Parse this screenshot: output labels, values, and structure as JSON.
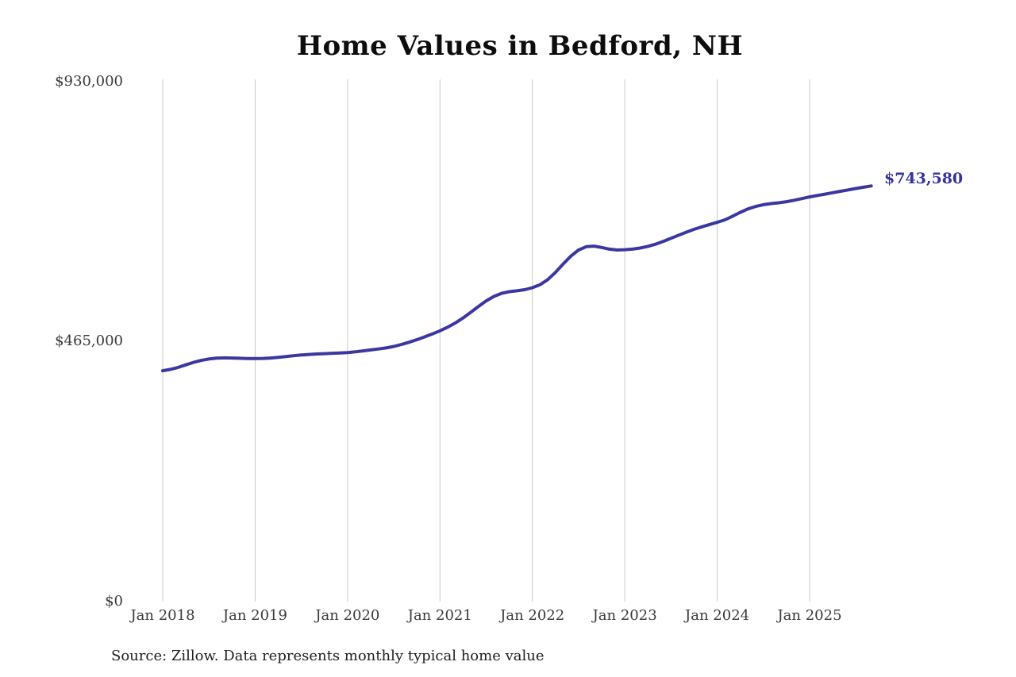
{
  "page": {
    "title": "Home Values in Bedford, NH",
    "source_note": "Source: Zillow. Data represents monthly typical home value"
  },
  "chart_data": {
    "type": "line",
    "title": "Home Values in Bedford, NH",
    "series_name": "Monthly typical home value",
    "ylim": [
      0,
      930000
    ],
    "grid": "vertical-only",
    "legend": "none",
    "line_color": "#3a38a0",
    "grid_color": "#c9c9c9",
    "end_label": "$743,580",
    "final_value": 743580,
    "source": "Source: Zillow. Data represents monthly typical home value",
    "y_ticks": [
      {
        "value": 930000,
        "label": "$930,000"
      },
      {
        "value": 465000,
        "label": "$465,000"
      },
      {
        "value": 0,
        "label": "$0"
      }
    ],
    "x_ticks": [
      {
        "label": "Jan 2018",
        "month_index": 0
      },
      {
        "label": "Jan 2019",
        "month_index": 12
      },
      {
        "label": "Jan 2020",
        "month_index": 24
      },
      {
        "label": "Jan 2021",
        "month_index": 36
      },
      {
        "label": "Jan 2022",
        "month_index": 48
      },
      {
        "label": "Jan 2023",
        "month_index": 60
      },
      {
        "label": "Jan 2024",
        "month_index": 72
      },
      {
        "label": "Jan 2025",
        "month_index": 84
      }
    ],
    "x": [
      "2018-01",
      "2018-02",
      "2018-03",
      "2018-04",
      "2018-05",
      "2018-06",
      "2018-07",
      "2018-08",
      "2018-09",
      "2018-10",
      "2018-11",
      "2018-12",
      "2019-01",
      "2019-02",
      "2019-03",
      "2019-04",
      "2019-05",
      "2019-06",
      "2019-07",
      "2019-08",
      "2019-09",
      "2019-10",
      "2019-11",
      "2019-12",
      "2020-01",
      "2020-02",
      "2020-03",
      "2020-04",
      "2020-05",
      "2020-06",
      "2020-07",
      "2020-08",
      "2020-09",
      "2020-10",
      "2020-11",
      "2020-12",
      "2021-01",
      "2021-02",
      "2021-03",
      "2021-04",
      "2021-05",
      "2021-06",
      "2021-07",
      "2021-08",
      "2021-09",
      "2021-10",
      "2021-11",
      "2021-12",
      "2022-01",
      "2022-02",
      "2022-03",
      "2022-04",
      "2022-05",
      "2022-06",
      "2022-07",
      "2022-08",
      "2022-09",
      "2022-10",
      "2022-11",
      "2022-12",
      "2023-01",
      "2023-02",
      "2023-03",
      "2023-04",
      "2023-05",
      "2023-06",
      "2023-07",
      "2023-08",
      "2023-09",
      "2023-10",
      "2023-11",
      "2023-12",
      "2024-01",
      "2024-02",
      "2024-03",
      "2024-04",
      "2024-05",
      "2024-06",
      "2024-07",
      "2024-08",
      "2024-09",
      "2024-10",
      "2024-11",
      "2024-12",
      "2025-01",
      "2025-02",
      "2025-03",
      "2025-04",
      "2025-05",
      "2025-06",
      "2025-07",
      "2025-08",
      "2025-09"
    ],
    "values": [
      413000,
      415500,
      419000,
      423500,
      428000,
      431500,
      434000,
      435500,
      436000,
      435800,
      435300,
      434800,
      434700,
      435000,
      435800,
      437000,
      438300,
      439800,
      441200,
      442200,
      443000,
      443600,
      444200,
      444800,
      445500,
      446800,
      448500,
      450300,
      452000,
      453800,
      456500,
      460000,
      464000,
      468500,
      473500,
      478800,
      484500,
      491000,
      498500,
      507500,
      517500,
      528000,
      538000,
      546000,
      551500,
      554500,
      556000,
      558000,
      561500,
      567000,
      576000,
      589000,
      604000,
      618000,
      629000,
      635000,
      636000,
      633500,
      630500,
      629000,
      629500,
      630500,
      632500,
      635500,
      639500,
      644500,
      650000,
      655500,
      661000,
      666000,
      670500,
      674500,
      678500,
      683000,
      689500,
      696500,
      702500,
      707000,
      710000,
      712000,
      713500,
      715500,
      718000,
      721000,
      724000,
      726500,
      729000,
      731500,
      734000,
      736500,
      739000,
      741300,
      743580
    ]
  }
}
